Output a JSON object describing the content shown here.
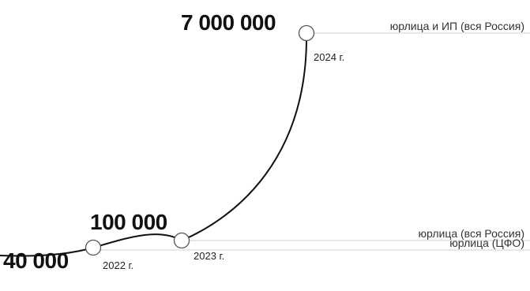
{
  "chart_data": {
    "type": "line",
    "title": "",
    "xlabel": "",
    "ylabel": "",
    "points": [
      {
        "x_label": "2022 г.",
        "value": 40000,
        "value_label": "40 000",
        "scope": "юрлица (ЦФО)"
      },
      {
        "x_label": "2023 г.",
        "value": 100000,
        "value_label": "100 000",
        "scope": "юрлица (вся Россия)"
      },
      {
        "x_label": "2024 г.",
        "value": 7000000,
        "value_label": "7 000 000",
        "scope": "юрлица и ИП (вся Россия)"
      }
    ],
    "colors": {
      "curve": "#111111",
      "reference_line": "#cfcfcf",
      "marker_fill": "#ffffff",
      "marker_stroke": "#555555",
      "text": "#111111"
    },
    "grid": false,
    "legend": "none"
  }
}
